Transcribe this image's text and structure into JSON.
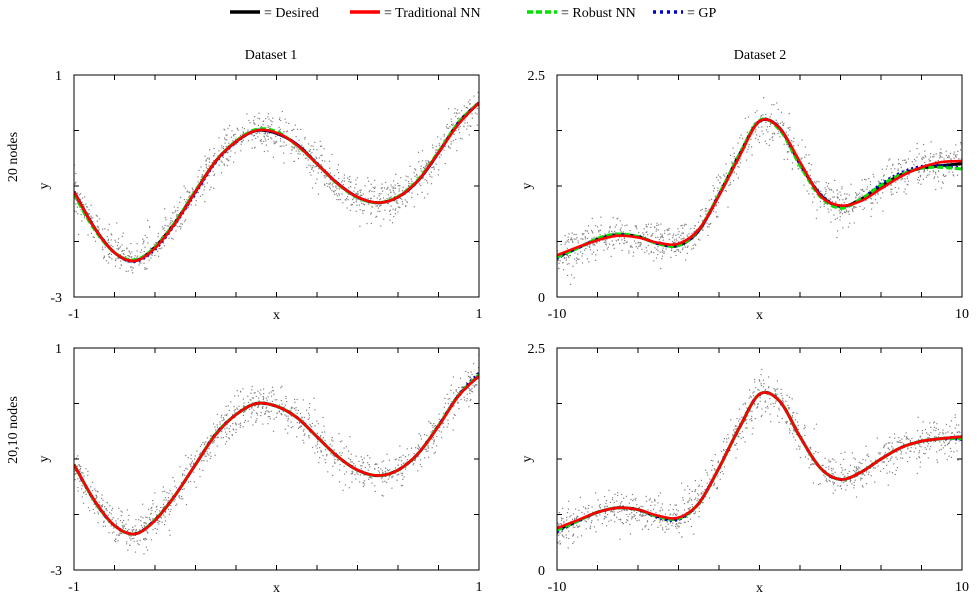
{
  "legend": {
    "placement": "top-center",
    "entries": [
      {
        "label": "= Desired",
        "color": "#000000",
        "style": "solid"
      },
      {
        "label": "= Traditional NN",
        "color": "#ff0000",
        "style": "solid"
      },
      {
        "label": "= Robust NN",
        "color": "#00e000",
        "style": "dashed"
      },
      {
        "label": "= GP",
        "color": "#0000c8",
        "style": "dotted"
      }
    ]
  },
  "column_titles": [
    "Dataset 1",
    "Dataset 2"
  ],
  "row_labels": [
    "20 nodes",
    "20,10 nodes"
  ],
  "colors": {
    "scatter": "#808080",
    "desired": "#000000",
    "traditional": "#ff0000",
    "robust": "#00e000",
    "gp": "#0000c8"
  },
  "chart_data": [
    {
      "type": "line",
      "row": 0,
      "col": 0,
      "title": "",
      "xlabel": "x",
      "ylabel": "y",
      "xlim": [
        -1,
        1
      ],
      "ylim": [
        -3,
        1
      ],
      "xtick_labels": [
        "-1",
        "1"
      ],
      "ytick_labels": [
        "1",
        "-3"
      ],
      "x": [
        -1,
        -0.9,
        -0.8,
        -0.7,
        -0.6,
        -0.5,
        -0.4,
        -0.3,
        -0.2,
        -0.1,
        0,
        0.1,
        0.2,
        0.3,
        0.4,
        0.5,
        0.6,
        0.7,
        0.8,
        0.9,
        1
      ],
      "series": [
        {
          "key": "desired",
          "values": [
            -1.1,
            -1.75,
            -2.2,
            -2.35,
            -2.1,
            -1.65,
            -1.1,
            -0.55,
            -0.2,
            0.0,
            -0.05,
            -0.25,
            -0.6,
            -0.95,
            -1.2,
            -1.3,
            -1.2,
            -0.9,
            -0.4,
            0.15,
            0.5
          ]
        },
        {
          "key": "traditional",
          "values": [
            -1.1,
            -1.75,
            -2.2,
            -2.35,
            -2.12,
            -1.67,
            -1.1,
            -0.55,
            -0.2,
            0.0,
            -0.04,
            -0.26,
            -0.6,
            -0.95,
            -1.2,
            -1.3,
            -1.2,
            -0.9,
            -0.4,
            0.12,
            0.5
          ]
        },
        {
          "key": "robust",
          "values": [
            -1.15,
            -1.78,
            -2.2,
            -2.33,
            -2.1,
            -1.65,
            -1.08,
            -0.55,
            -0.19,
            0.02,
            -0.02,
            -0.27,
            -0.6,
            -0.96,
            -1.21,
            -1.3,
            -1.19,
            -0.88,
            -0.38,
            0.15,
            0.5
          ]
        },
        {
          "key": "gp",
          "values": [
            -1.1,
            -1.75,
            -2.2,
            -2.36,
            -2.14,
            -1.68,
            -1.12,
            -0.57,
            -0.21,
            0.0,
            -0.05,
            -0.25,
            -0.59,
            -0.95,
            -1.2,
            -1.3,
            -1.2,
            -0.9,
            -0.4,
            0.15,
            0.5
          ]
        }
      ]
    },
    {
      "type": "line",
      "row": 0,
      "col": 1,
      "title": "",
      "xlabel": "x",
      "ylabel": "y",
      "xlim": [
        -10,
        10
      ],
      "ylim": [
        0,
        2.5
      ],
      "xtick_labels": [
        "-10",
        "10"
      ],
      "ytick_labels": [
        "2.5",
        "0"
      ],
      "x": [
        -10,
        -9,
        -8,
        -7,
        -6,
        -5,
        -4,
        -3,
        -2,
        -1,
        0,
        1,
        2,
        3,
        4,
        5,
        6,
        7,
        8,
        9,
        10
      ],
      "series": [
        {
          "key": "desired",
          "values": [
            0.45,
            0.55,
            0.65,
            0.7,
            0.68,
            0.6,
            0.58,
            0.75,
            1.15,
            1.6,
            1.98,
            1.9,
            1.5,
            1.15,
            1.02,
            1.1,
            1.25,
            1.38,
            1.45,
            1.48,
            1.5
          ]
        },
        {
          "key": "traditional",
          "values": [
            0.47,
            0.56,
            0.64,
            0.69,
            0.67,
            0.61,
            0.6,
            0.76,
            1.14,
            1.58,
            1.98,
            1.9,
            1.52,
            1.14,
            1.03,
            1.08,
            1.22,
            1.36,
            1.46,
            1.52,
            1.53
          ]
        },
        {
          "key": "robust",
          "values": [
            0.45,
            0.55,
            0.66,
            0.71,
            0.68,
            0.6,
            0.58,
            0.76,
            1.16,
            1.6,
            1.99,
            1.88,
            1.48,
            1.13,
            1.0,
            1.1,
            1.26,
            1.38,
            1.45,
            1.46,
            1.44
          ]
        },
        {
          "key": "gp",
          "values": [
            0.44,
            0.55,
            0.65,
            0.7,
            0.68,
            0.6,
            0.58,
            0.75,
            1.15,
            1.6,
            1.98,
            1.9,
            1.5,
            1.16,
            1.02,
            1.1,
            1.27,
            1.4,
            1.47,
            1.48,
            1.45
          ]
        }
      ]
    },
    {
      "type": "line",
      "row": 1,
      "col": 0,
      "title": "",
      "xlabel": "x",
      "ylabel": "y",
      "xlim": [
        -1,
        1
      ],
      "ylim": [
        -3,
        1
      ],
      "xtick_labels": [
        "-1",
        "1"
      ],
      "ytick_labels": [
        "1",
        "-3"
      ],
      "x": [
        -1,
        -0.9,
        -0.8,
        -0.7,
        -0.6,
        -0.5,
        -0.4,
        -0.3,
        -0.2,
        -0.1,
        0,
        0.1,
        0.2,
        0.3,
        0.4,
        0.5,
        0.6,
        0.7,
        0.8,
        0.9,
        1
      ],
      "series": [
        {
          "key": "desired",
          "values": [
            -1.1,
            -1.75,
            -2.2,
            -2.35,
            -2.1,
            -1.65,
            -1.1,
            -0.55,
            -0.2,
            0.0,
            -0.05,
            -0.25,
            -0.6,
            -0.95,
            -1.2,
            -1.3,
            -1.2,
            -0.9,
            -0.4,
            0.15,
            0.5
          ]
        },
        {
          "key": "traditional",
          "values": [
            -1.1,
            -1.74,
            -2.2,
            -2.35,
            -2.11,
            -1.65,
            -1.1,
            -0.56,
            -0.2,
            0.0,
            -0.05,
            -0.25,
            -0.6,
            -0.95,
            -1.2,
            -1.3,
            -1.2,
            -0.9,
            -0.41,
            0.14,
            0.5
          ]
        },
        {
          "key": "robust",
          "values": [
            -1.1,
            -1.75,
            -2.2,
            -2.35,
            -2.1,
            -1.65,
            -1.1,
            -0.55,
            -0.2,
            0.0,
            -0.05,
            -0.25,
            -0.6,
            -0.95,
            -1.2,
            -1.3,
            -1.2,
            -0.9,
            -0.4,
            0.15,
            0.52
          ]
        },
        {
          "key": "gp",
          "values": [
            -1.1,
            -1.75,
            -2.2,
            -2.35,
            -2.1,
            -1.65,
            -1.1,
            -0.55,
            -0.2,
            0.0,
            -0.05,
            -0.25,
            -0.6,
            -0.95,
            -1.2,
            -1.3,
            -1.2,
            -0.9,
            -0.4,
            0.16,
            0.55
          ]
        }
      ]
    },
    {
      "type": "line",
      "row": 1,
      "col": 1,
      "title": "",
      "xlabel": "x",
      "ylabel": "y",
      "xlim": [
        -10,
        10
      ],
      "ylim": [
        0,
        2.5
      ],
      "xtick_labels": [
        "-10",
        "10"
      ],
      "ytick_labels": [
        "2.5",
        "0"
      ],
      "x": [
        -10,
        -9,
        -8,
        -7,
        -6,
        -5,
        -4,
        -3,
        -2,
        -1,
        0,
        1,
        2,
        3,
        4,
        5,
        6,
        7,
        8,
        9,
        10
      ],
      "series": [
        {
          "key": "desired",
          "values": [
            0.45,
            0.55,
            0.65,
            0.7,
            0.68,
            0.6,
            0.58,
            0.75,
            1.15,
            1.6,
            1.98,
            1.9,
            1.5,
            1.15,
            1.02,
            1.1,
            1.25,
            1.38,
            1.45,
            1.48,
            1.5
          ]
        },
        {
          "key": "traditional",
          "values": [
            0.47,
            0.56,
            0.65,
            0.7,
            0.68,
            0.61,
            0.59,
            0.75,
            1.15,
            1.6,
            1.98,
            1.9,
            1.5,
            1.15,
            1.02,
            1.1,
            1.25,
            1.38,
            1.45,
            1.48,
            1.5
          ]
        },
        {
          "key": "robust",
          "values": [
            0.45,
            0.55,
            0.65,
            0.7,
            0.68,
            0.6,
            0.58,
            0.75,
            1.15,
            1.6,
            1.98,
            1.9,
            1.5,
            1.15,
            1.02,
            1.1,
            1.25,
            1.38,
            1.45,
            1.48,
            1.48
          ]
        },
        {
          "key": "gp",
          "values": [
            0.43,
            0.55,
            0.65,
            0.7,
            0.68,
            0.59,
            0.57,
            0.75,
            1.15,
            1.6,
            1.98,
            1.9,
            1.5,
            1.15,
            1.02,
            1.1,
            1.25,
            1.38,
            1.45,
            1.48,
            1.47
          ]
        }
      ]
    }
  ]
}
